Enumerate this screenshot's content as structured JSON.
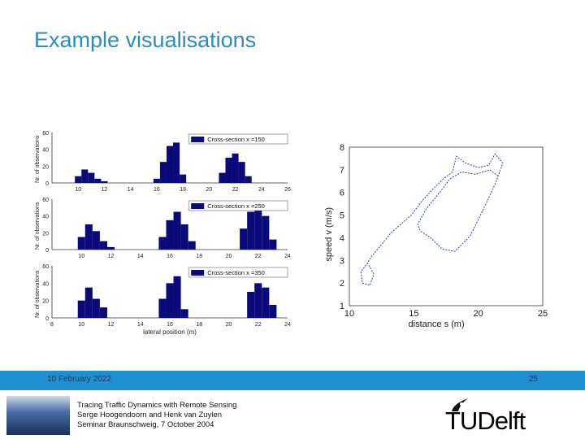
{
  "slide": {
    "title": "Example visualisations",
    "date": "10 February 2022",
    "page_number": "25",
    "footer_lines": [
      "Tracing Traffic Dynamics with Remote Sensing",
      "Serge Hoogendoorn and Henk van Zuylen",
      "Seminar Braunschweig, 7 October 2004"
    ],
    "logo_text": "TUDelft"
  },
  "chart_data": [
    {
      "type": "bar",
      "panel": "histogram-1",
      "legend": "Cross-section x =150",
      "ylabel": "Nr. of observations",
      "xticks": [
        "10",
        "12",
        "14",
        "16",
        "18",
        "20",
        "22",
        "24",
        "26"
      ],
      "yticks": [
        "0",
        "20",
        "40",
        "60"
      ],
      "ylim": [
        0,
        60
      ],
      "xlim": [
        8,
        26
      ],
      "bins": [
        {
          "x": 10.0,
          "v": 8
        },
        {
          "x": 10.5,
          "v": 16
        },
        {
          "x": 11.0,
          "v": 12
        },
        {
          "x": 11.5,
          "v": 5
        },
        {
          "x": 12.0,
          "v": 2
        },
        {
          "x": 16.0,
          "v": 5
        },
        {
          "x": 16.5,
          "v": 25
        },
        {
          "x": 17.0,
          "v": 44
        },
        {
          "x": 17.5,
          "v": 48
        },
        {
          "x": 18.0,
          "v": 10
        },
        {
          "x": 21.0,
          "v": 12
        },
        {
          "x": 21.5,
          "v": 30
        },
        {
          "x": 22.0,
          "v": 35
        },
        {
          "x": 22.5,
          "v": 25
        },
        {
          "x": 23.0,
          "v": 8
        }
      ]
    },
    {
      "type": "bar",
      "panel": "histogram-2",
      "legend": "Cross-section x =250",
      "ylabel": "Nr. of observations",
      "xticks": [
        "10",
        "12",
        "14",
        "16",
        "18",
        "20",
        "22",
        "24"
      ],
      "yticks": [
        "0",
        "20",
        "40",
        "60"
      ],
      "ylim": [
        0,
        60
      ],
      "xlim": [
        8,
        24
      ],
      "bins": [
        {
          "x": 10.0,
          "v": 15
        },
        {
          "x": 10.5,
          "v": 30
        },
        {
          "x": 11.0,
          "v": 22
        },
        {
          "x": 11.5,
          "v": 10
        },
        {
          "x": 12.0,
          "v": 3
        },
        {
          "x": 15.5,
          "v": 15
        },
        {
          "x": 16.0,
          "v": 35
        },
        {
          "x": 16.5,
          "v": 45
        },
        {
          "x": 17.0,
          "v": 30
        },
        {
          "x": 17.5,
          "v": 10
        },
        {
          "x": 21.0,
          "v": 25
        },
        {
          "x": 21.5,
          "v": 45
        },
        {
          "x": 22.0,
          "v": 55
        },
        {
          "x": 22.5,
          "v": 40
        },
        {
          "x": 23.0,
          "v": 12
        }
      ]
    },
    {
      "type": "bar",
      "panel": "histogram-3",
      "legend": "Cross-section x =350",
      "ylabel": "Nr. of observations",
      "xlabel": "lateral position (m)",
      "xticks": [
        "8",
        "10",
        "12",
        "14",
        "16",
        "18",
        "20",
        "22",
        "24"
      ],
      "yticks": [
        "0",
        "20",
        "40",
        "60"
      ],
      "ylim": [
        0,
        60
      ],
      "xlim": [
        8,
        24
      ],
      "bins": [
        {
          "x": 10.0,
          "v": 20
        },
        {
          "x": 10.5,
          "v": 35
        },
        {
          "x": 11.0,
          "v": 22
        },
        {
          "x": 11.5,
          "v": 12
        },
        {
          "x": 15.5,
          "v": 22
        },
        {
          "x": 16.0,
          "v": 40
        },
        {
          "x": 16.5,
          "v": 48
        },
        {
          "x": 17.0,
          "v": 10
        },
        {
          "x": 21.5,
          "v": 30
        },
        {
          "x": 22.0,
          "v": 40
        },
        {
          "x": 22.5,
          "v": 35
        },
        {
          "x": 23.0,
          "v": 15
        }
      ]
    },
    {
      "type": "line",
      "panel": "speed-distance",
      "xlabel": "distance s (m)",
      "ylabel": "speed v (m/s)",
      "xticks": [
        "10",
        "15",
        "20",
        "25"
      ],
      "yticks": [
        "1",
        "2",
        "3",
        "4",
        "5",
        "6",
        "7",
        "8"
      ],
      "xlim": [
        10,
        25
      ],
      "ylim": [
        1,
        8
      ],
      "series": [
        {
          "values": [
            [
              11.3,
              2.8
            ],
            [
              10.9,
              2.5
            ],
            [
              11.0,
              2.0
            ],
            [
              11.6,
              1.9
            ],
            [
              11.9,
              2.4
            ],
            [
              11.4,
              2.9
            ],
            [
              11.9,
              3.3
            ],
            [
              12.5,
              3.7
            ],
            [
              13.2,
              4.2
            ],
            [
              14.0,
              4.6
            ],
            [
              14.8,
              5.0
            ],
            [
              15.6,
              5.6
            ],
            [
              16.4,
              6.1
            ],
            [
              17.3,
              6.6
            ],
            [
              18.0,
              6.9
            ],
            [
              18.3,
              7.6
            ],
            [
              19.0,
              7.3
            ],
            [
              20.0,
              7.1
            ],
            [
              20.8,
              7.2
            ],
            [
              21.3,
              7.7
            ],
            [
              21.9,
              7.3
            ],
            [
              21.4,
              6.5
            ],
            [
              20.6,
              5.5
            ],
            [
              19.4,
              4.1
            ],
            [
              18.2,
              3.4
            ],
            [
              17.2,
              3.5
            ],
            [
              16.3,
              4.0
            ],
            [
              15.5,
              4.3
            ],
            [
              15.3,
              4.6
            ],
            [
              16.0,
              5.3
            ],
            [
              17.0,
              6.0
            ],
            [
              17.8,
              6.6
            ],
            [
              18.7,
              6.9
            ],
            [
              19.8,
              6.8
            ],
            [
              20.9,
              7.0
            ],
            [
              21.6,
              6.7
            ]
          ]
        }
      ]
    }
  ]
}
